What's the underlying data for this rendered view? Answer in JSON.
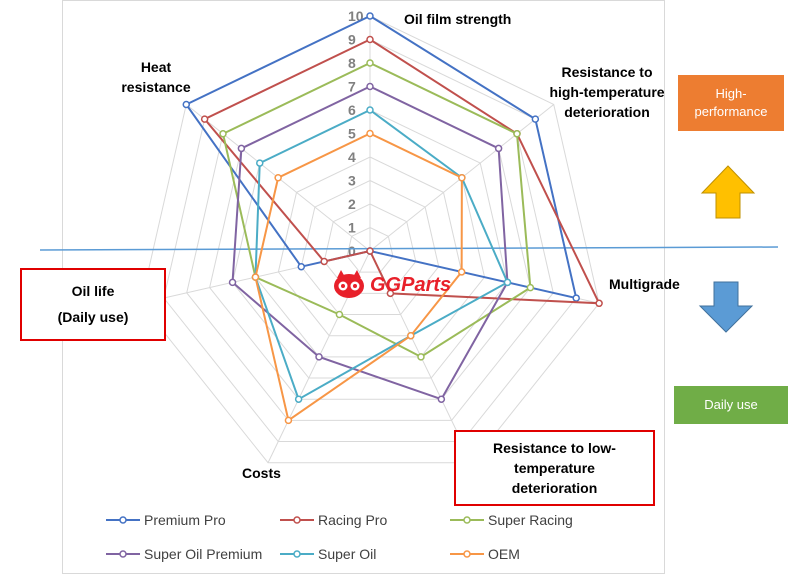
{
  "chart_data": {
    "type": "radar",
    "categories": [
      "Oil film strength",
      "Resistance to high-temperature deterioration",
      "Multigrade",
      "Resistance to low-temperature deterioration",
      "Costs",
      "Oil life (Daily use)",
      "Heat resistance"
    ],
    "rlim": [
      0,
      10
    ],
    "ticks": [
      "0",
      "1",
      "2",
      "3",
      "4",
      "5",
      "6",
      "7",
      "8",
      "9",
      "10"
    ],
    "series": [
      {
        "name": "Premium Pro",
        "color": "#4472c4",
        "values": [
          10,
          9,
          9,
          0,
          0,
          3,
          10
        ]
      },
      {
        "name": "Racing Pro",
        "color": "#c0504d",
        "values": [
          9,
          8,
          10,
          2,
          0,
          2,
          9
        ]
      },
      {
        "name": "Super Racing",
        "color": "#9bbb59",
        "values": [
          8,
          8,
          7,
          5,
          3,
          5,
          8
        ]
      },
      {
        "name": "Super Oil Premium",
        "color": "#8064a2",
        "values": [
          7,
          7,
          6,
          7,
          5,
          6,
          7
        ]
      },
      {
        "name": "Super Oil",
        "color": "#4bacc6",
        "values": [
          6,
          5,
          6,
          4,
          7,
          5,
          6
        ]
      },
      {
        "name": "OEM",
        "color": "#f79646",
        "values": [
          5,
          5,
          4,
          4,
          8,
          5,
          5
        ]
      }
    ]
  },
  "labels": {
    "oil_film": "Oil film strength",
    "high_temp_1": "Resistance to",
    "high_temp_2": "high-temperature",
    "high_temp_3": "deterioration",
    "multigrade": "Multigrade",
    "low_temp_1": "Resistance to low-",
    "low_temp_2": "temperature",
    "low_temp_3": "deterioration",
    "costs": "Costs",
    "oil_life_1": "Oil life",
    "oil_life_2": "(Daily use)",
    "heat_1": "Heat",
    "heat_2": "resistance"
  },
  "side": {
    "high_performance": "High-\nperformance",
    "high_color": "#ed7d31",
    "daily_use": "Daily use",
    "daily_color": "#70ad47",
    "up_arrow_color": "#ffc000",
    "down_arrow_color": "#5b9bd5",
    "divider_color": "#5b9bd5"
  },
  "logo": {
    "text": "GGParts"
  }
}
